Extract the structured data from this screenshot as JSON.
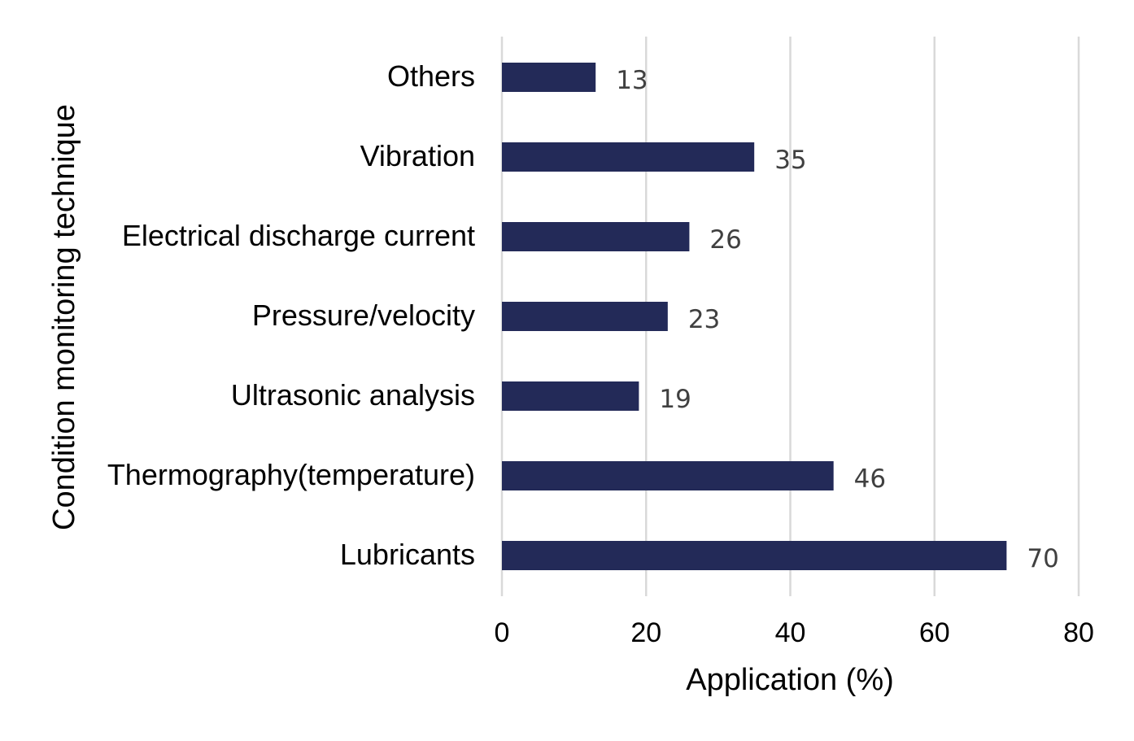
{
  "chart_data": {
    "type": "bar",
    "orientation": "horizontal",
    "categories": [
      "Others",
      "Vibration",
      "Electrical discharge current",
      "Pressure/velocity",
      "Ultrasonic analysis",
      "Thermography(temperature)",
      "Lubricants"
    ],
    "values": [
      13,
      35,
      26,
      23,
      19,
      46,
      70
    ],
    "data_labels": [
      "13",
      "35",
      "26",
      "23",
      "19",
      "46",
      "70"
    ],
    "xlabel": "Application (%)",
    "ylabel": "Condition monitoring technique",
    "xlim": [
      0,
      80
    ],
    "xticks": [
      "0",
      "20",
      "40",
      "60",
      "80"
    ],
    "grid": "vertical",
    "legend": "none",
    "bar_color": "#232a58"
  }
}
